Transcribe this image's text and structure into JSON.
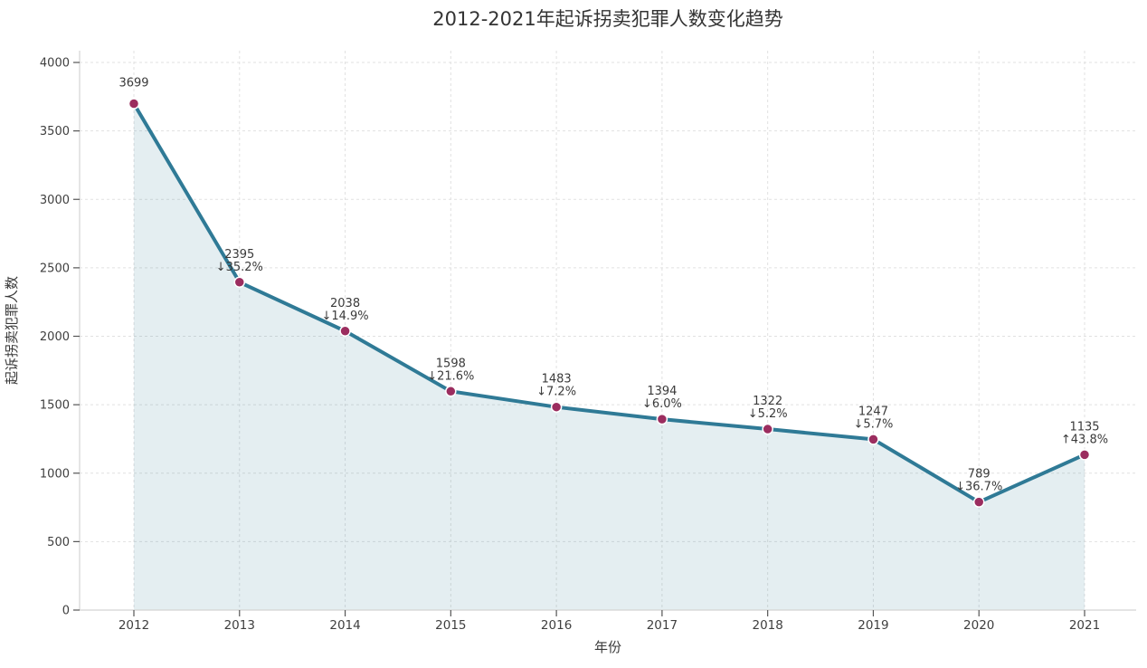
{
  "chart_data": {
    "type": "area",
    "title": "2012-2021年起诉拐卖犯罪人数变化趋势",
    "xlabel": "年份",
    "ylabel": "起诉拐卖犯罪人数",
    "categories": [
      "2012",
      "2013",
      "2014",
      "2015",
      "2016",
      "2017",
      "2018",
      "2019",
      "2020",
      "2021"
    ],
    "values": [
      3699,
      2395,
      2038,
      1598,
      1483,
      1394,
      1322,
      1247,
      789,
      1135
    ],
    "annotations": [
      {
        "value": "3699",
        "change": ""
      },
      {
        "value": "2395",
        "change": "↓35.2%"
      },
      {
        "value": "2038",
        "change": "↓14.9%"
      },
      {
        "value": "1598",
        "change": "↓21.6%"
      },
      {
        "value": "1483",
        "change": "↓7.2%"
      },
      {
        "value": "1394",
        "change": "↓6.0%"
      },
      {
        "value": "1322",
        "change": "↓5.2%"
      },
      {
        "value": "1247",
        "change": "↓5.7%"
      },
      {
        "value": "789",
        "change": "↓36.7%"
      },
      {
        "value": "1135",
        "change": "↑43.8%"
      }
    ],
    "yticks": [
      0,
      500,
      1000,
      1500,
      2000,
      2500,
      3000,
      3500,
      4000
    ],
    "ylim": [
      0,
      4090
    ],
    "grid": "dashed",
    "legend": null,
    "colors": {
      "line": "#2f7a96",
      "marker": "#9b2d5f",
      "marker_edge": "#ffffff",
      "area": "rgba(47,122,150,0.13)",
      "grid": "#e1e1e1",
      "spine": "#d4d4d4",
      "tick": "#555555",
      "tick_label": "#3f3f3f",
      "annotation": "#3a3a3a"
    }
  }
}
